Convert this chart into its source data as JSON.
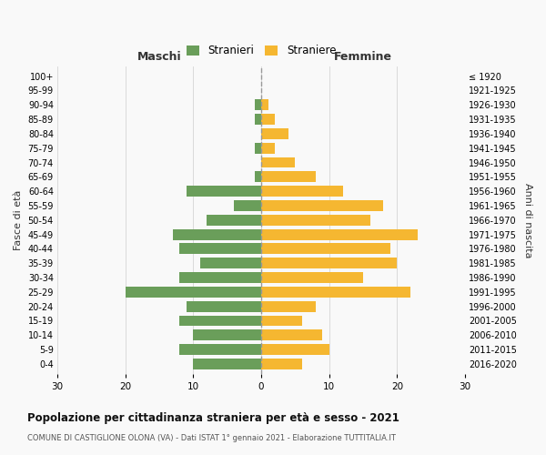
{
  "age_groups": [
    "0-4",
    "5-9",
    "10-14",
    "15-19",
    "20-24",
    "25-29",
    "30-34",
    "35-39",
    "40-44",
    "45-49",
    "50-54",
    "55-59",
    "60-64",
    "65-69",
    "70-74",
    "75-79",
    "80-84",
    "85-89",
    "90-94",
    "95-99",
    "100+"
  ],
  "birth_years": [
    "2016-2020",
    "2011-2015",
    "2006-2010",
    "2001-2005",
    "1996-2000",
    "1991-1995",
    "1986-1990",
    "1981-1985",
    "1976-1980",
    "1971-1975",
    "1966-1970",
    "1961-1965",
    "1956-1960",
    "1951-1955",
    "1946-1950",
    "1941-1945",
    "1936-1940",
    "1931-1935",
    "1926-1930",
    "1921-1925",
    "≤ 1920"
  ],
  "males": [
    10,
    12,
    10,
    12,
    11,
    20,
    12,
    9,
    12,
    13,
    8,
    4,
    11,
    1,
    0,
    1,
    0,
    1,
    1,
    0,
    0
  ],
  "females": [
    6,
    10,
    9,
    6,
    8,
    22,
    15,
    20,
    19,
    23,
    16,
    18,
    12,
    8,
    5,
    2,
    4,
    2,
    1,
    0,
    0
  ],
  "male_color": "#6a9e5a",
  "female_color": "#f5b731",
  "background_color": "#f9f9f9",
  "grid_color": "#d5d5d5",
  "title": "Popolazione per cittadinanza straniera per età e sesso - 2021",
  "subtitle": "COMUNE DI CASTIGLIONE OLONA (VA) - Dati ISTAT 1° gennaio 2021 - Elaborazione TUTTITALIA.IT",
  "ylabel_left": "Fasce di età",
  "ylabel_right": "Anni di nascita",
  "header_left": "Maschi",
  "header_right": "Femmine",
  "legend_male": "Stranieri",
  "legend_female": "Straniere",
  "xlim": 30,
  "dashed_line_color": "#999999"
}
